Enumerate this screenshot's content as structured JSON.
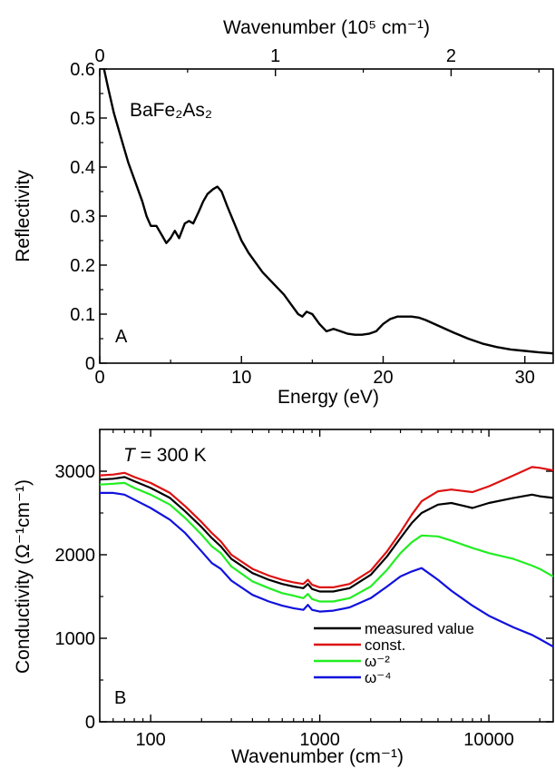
{
  "chart_data": [
    {
      "type": "line",
      "panel_label": "A",
      "annotation": "BaFe₂As₂",
      "xlabel": "Energy (eV)",
      "ylabel": "Reflectivity",
      "top_xlabel": "Wavenumber (10⁵ cm⁻¹)",
      "xlim": [
        0,
        32
      ],
      "ylim": [
        0,
        0.6
      ],
      "x_ticks": [
        "0",
        "10",
        "20",
        "30"
      ],
      "y_ticks": [
        "0",
        "0.1",
        "0.2",
        "0.3",
        "0.4",
        "0.5",
        "0.6"
      ],
      "top_ticks": [
        "0",
        "1",
        "2"
      ],
      "series": [
        {
          "color": "#000000",
          "x": [
            0.3,
            0.6,
            1.0,
            1.5,
            2.0,
            2.5,
            3.0,
            3.3,
            3.6,
            4.0,
            4.4,
            4.7,
            5.0,
            5.3,
            5.6,
            6.0,
            6.3,
            6.6,
            7.0,
            7.3,
            7.6,
            8.0,
            8.3,
            8.6,
            9.0,
            9.5,
            10.0,
            10.5,
            11.0,
            11.5,
            12.0,
            12.5,
            13.0,
            13.5,
            14.0,
            14.3,
            14.6,
            15.0,
            15.5,
            16.0,
            16.5,
            17.0,
            17.5,
            18.0,
            18.5,
            19.0,
            19.5,
            20.0,
            20.5,
            21.0,
            21.5,
            22.0,
            22.5,
            23.0,
            24.0,
            25.0,
            26.0,
            27.0,
            28.0,
            29.0,
            30.0,
            31.0,
            32.0
          ],
          "y": [
            0.6,
            0.56,
            0.51,
            0.46,
            0.41,
            0.37,
            0.33,
            0.3,
            0.28,
            0.28,
            0.26,
            0.245,
            0.255,
            0.27,
            0.255,
            0.285,
            0.29,
            0.285,
            0.31,
            0.33,
            0.345,
            0.355,
            0.36,
            0.35,
            0.32,
            0.285,
            0.25,
            0.225,
            0.205,
            0.185,
            0.17,
            0.155,
            0.14,
            0.12,
            0.1,
            0.095,
            0.105,
            0.1,
            0.08,
            0.065,
            0.07,
            0.065,
            0.06,
            0.058,
            0.058,
            0.06,
            0.065,
            0.08,
            0.09,
            0.095,
            0.095,
            0.095,
            0.093,
            0.088,
            0.075,
            0.062,
            0.05,
            0.04,
            0.033,
            0.028,
            0.025,
            0.022,
            0.02
          ]
        }
      ]
    },
    {
      "type": "line",
      "panel_label": "B",
      "annotation": {
        "italic": "T",
        "rest": " = 300 K"
      },
      "xlabel": "Wavenumber (cm⁻¹)",
      "ylabel": "Conductivity (Ω⁻¹cm⁻¹)",
      "xscale": "log",
      "xlim": [
        50,
        24000
      ],
      "ylim": [
        0,
        3500
      ],
      "x_ticks": [
        "100",
        "1000",
        "10000"
      ],
      "y_ticks": [
        "0",
        "1000",
        "2000",
        "3000"
      ],
      "legend_position": "bottom-right",
      "x": [
        50,
        60,
        70,
        80,
        100,
        130,
        160,
        200,
        230,
        260,
        300,
        400,
        500,
        600,
        700,
        800,
        850,
        900,
        1000,
        1200,
        1500,
        2000,
        2500,
        3000,
        3500,
        4000,
        5000,
        6000,
        8000,
        10000,
        14000,
        18000,
        20000,
        24000
      ],
      "series": [
        {
          "name": "measured value",
          "color": "#000000",
          "values": [
            2900,
            2910,
            2930,
            2880,
            2800,
            2680,
            2520,
            2330,
            2200,
            2100,
            1950,
            1780,
            1700,
            1650,
            1620,
            1600,
            1650,
            1590,
            1560,
            1560,
            1600,
            1760,
            1980,
            2200,
            2380,
            2500,
            2600,
            2620,
            2560,
            2620,
            2680,
            2720,
            2700,
            2680
          ]
        },
        {
          "name": "const.",
          "color": "#dd1111",
          "values": [
            2950,
            2960,
            2980,
            2930,
            2860,
            2740,
            2580,
            2390,
            2260,
            2160,
            2000,
            1830,
            1750,
            1700,
            1670,
            1650,
            1700,
            1640,
            1610,
            1610,
            1650,
            1810,
            2040,
            2270,
            2480,
            2640,
            2760,
            2780,
            2750,
            2820,
            2950,
            3050,
            3040,
            3010
          ]
        },
        {
          "name": "ω⁻²",
          "color": "#22ee22",
          "values": [
            2840,
            2850,
            2860,
            2800,
            2720,
            2600,
            2440,
            2240,
            2100,
            2020,
            1860,
            1680,
            1600,
            1540,
            1510,
            1480,
            1530,
            1470,
            1440,
            1440,
            1480,
            1620,
            1820,
            2020,
            2150,
            2230,
            2220,
            2170,
            2080,
            2020,
            1950,
            1870,
            1830,
            1740
          ]
        },
        {
          "name": "ω⁻⁴",
          "color": "#1111dd",
          "values": [
            2740,
            2740,
            2720,
            2660,
            2560,
            2420,
            2260,
            2040,
            1900,
            1830,
            1690,
            1520,
            1440,
            1390,
            1360,
            1340,
            1400,
            1340,
            1320,
            1330,
            1370,
            1480,
            1620,
            1740,
            1800,
            1840,
            1700,
            1570,
            1390,
            1270,
            1130,
            1040,
            990,
            900
          ]
        }
      ]
    }
  ]
}
